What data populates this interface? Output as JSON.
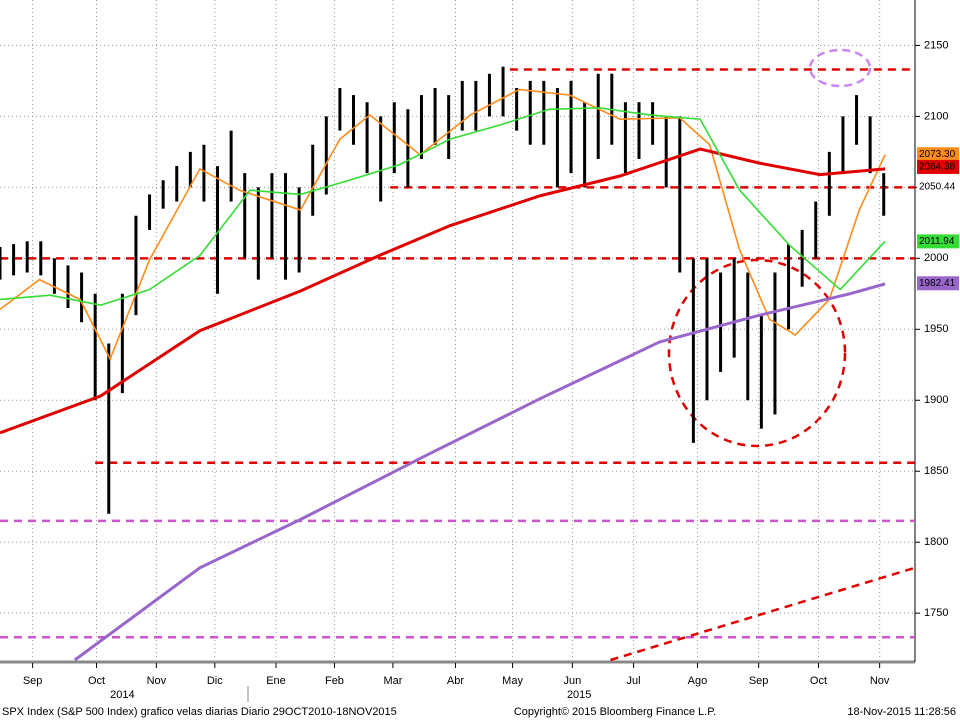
{
  "chart_data": {
    "type": "candlestick",
    "x": [
      0,
      1,
      2,
      3,
      4,
      5,
      6,
      7,
      8,
      9,
      10,
      11,
      12,
      13,
      14,
      15,
      16,
      17,
      18,
      19,
      20,
      21,
      22,
      23,
      24,
      25,
      26,
      27,
      28,
      29,
      30,
      31,
      32,
      33,
      34,
      35,
      36,
      37,
      38,
      39,
      40,
      41,
      42,
      43,
      44,
      45,
      46,
      47,
      48,
      49,
      50,
      51,
      52,
      53,
      54,
      55,
      56,
      57,
      58,
      59,
      60,
      61,
      62,
      63,
      64,
      65
    ],
    "high": [
      2008,
      2010,
      2012,
      2012,
      2000,
      1995,
      1990,
      1975,
      1940,
      1975,
      2030,
      2045,
      2055,
      2065,
      2075,
      2080,
      2065,
      2090,
      2060,
      2050,
      2060,
      2060,
      2050,
      2080,
      2100,
      2120,
      2115,
      2110,
      2100,
      2110,
      2105,
      2115,
      2120,
      2115,
      2125,
      2125,
      2130,
      2135,
      2120,
      2125,
      2125,
      2120,
      2125,
      2110,
      2130,
      2130,
      2110,
      2110,
      2110,
      2100,
      2100,
      2000,
      2000,
      1990,
      2000,
      1990,
      1960,
      1990,
      2010,
      2020,
      2040,
      2075,
      2100,
      2115,
      2100,
      2060
    ],
    "low": [
      1985,
      1988,
      1990,
      1988,
      1975,
      1965,
      1955,
      1900,
      1820,
      1905,
      1960,
      2020,
      2035,
      2040,
      2050,
      2040,
      1975,
      2040,
      2000,
      1985,
      2000,
      1985,
      1990,
      2030,
      2045,
      2090,
      2080,
      2060,
      2040,
      2060,
      2050,
      2070,
      2080,
      2070,
      2090,
      2090,
      2100,
      2100,
      2090,
      2080,
      2080,
      2050,
      2060,
      2050,
      2070,
      2080,
      2060,
      2070,
      2080,
      2050,
      1990,
      1870,
      1900,
      1920,
      1930,
      1900,
      1880,
      1890,
      1950,
      1980,
      2000,
      2030,
      2060,
      2080,
      2060,
      2030
    ],
    "color": "#000000",
    "last": {
      "value": 2050.44,
      "label": "2050.44"
    },
    "series": [
      {
        "color": "#ff8c1a",
        "x": [
          0,
          2.9,
          5.9,
          8.1,
          11,
          14.7,
          17.6,
          22.1,
          25,
          27.2,
          30.9,
          34.6,
          38.2,
          41.9,
          45.6,
          50,
          52.2,
          54.4,
          56.6,
          58.5,
          61,
          63.2,
          65.1
        ],
        "values": [
          1964,
          1985,
          1971,
          1929,
          1999,
          2063,
          2048,
          2034,
          2084,
          2101,
          2073,
          2101,
          2119,
          2115,
          2098,
          2099,
          2080,
          2006,
          1957,
          1946,
          1971,
          2034,
          2073
        ],
        "last": {
          "value": 2073.3,
          "label": "2073.30"
        }
      },
      {
        "color": "#e00000",
        "x": [
          0,
          7.4,
          14.7,
          22.1,
          27.9,
          33.1,
          39.7,
          45.6,
          51.5,
          55.9,
          60.3,
          65.1
        ],
        "values": [
          1877,
          1903,
          1949,
          1977,
          2002,
          2023,
          2044,
          2058,
          2077,
          2067,
          2059,
          2063
        ],
        "last": {
          "value": 2064.38,
          "label": "2064.38"
        }
      },
      {
        "color": "#33dd33",
        "x": [
          0,
          3.7,
          7.4,
          11,
          14.7,
          18.4,
          22.1,
          25.7,
          29.4,
          33.1,
          36.8,
          40.4,
          44.1,
          47.8,
          51.5,
          54.4,
          58.1,
          61.8,
          65.1
        ],
        "values": [
          1971,
          1974,
          1967,
          1978,
          2002,
          2048,
          2045,
          2055,
          2066,
          2084,
          2094,
          2105,
          2106,
          2101,
          2098,
          2048,
          2009,
          1978,
          2012
        ],
        "last": {
          "value": 2011.94,
          "label": "2011.94"
        }
      },
      {
        "color": "#9966cc",
        "x": [
          5.5,
          14.7,
          22.1,
          30.9,
          39.7,
          48.5,
          55.9,
          62.5,
          65.1
        ],
        "values": [
          1717,
          1782,
          1816,
          1859,
          1901,
          1941,
          1960,
          1975,
          1982
        ],
        "last": {
          "value": 1982.41,
          "label": "1982.41"
        }
      }
    ],
    "hlines": [
      {
        "value": 2133,
        "xmin": 37.5,
        "color": "#e00000"
      },
      {
        "value": 2050,
        "xmin": 28.7,
        "color": "#e00000"
      },
      {
        "value": 2000,
        "xmin": 0,
        "color": "#e00000"
      },
      {
        "value": 1856,
        "xmin": 7,
        "color": "#e00000"
      },
      {
        "value": 1815,
        "xmin": 0,
        "color": "#cc55cc"
      },
      {
        "value": 1733,
        "xmin": 0,
        "color": "#cc55cc"
      }
    ],
    "trendline": {
      "color": "#e00000",
      "x": [
        44.9,
        67.3
      ],
      "values": [
        1717,
        1782
      ]
    },
    "xlim": [
      0,
      67.3
    ],
    "ylim": [
      1717,
      2182
    ],
    "yticks": [
      1750,
      1800,
      1850,
      1900,
      1950,
      2000,
      2050,
      2100,
      2150
    ],
    "xticks": [
      {
        "value": 2.4,
        "label": "Sep"
      },
      {
        "value": 7.1,
        "label": "Oct"
      },
      {
        "value": 11.5,
        "label": "Nov"
      },
      {
        "value": 15.8,
        "label": "Dic"
      },
      {
        "value": 20.3,
        "label": "Ene"
      },
      {
        "value": 24.6,
        "label": "Feb"
      },
      {
        "value": 28.9,
        "label": "Mar"
      },
      {
        "value": 33.5,
        "label": "Abr"
      },
      {
        "value": 37.7,
        "label": "May"
      },
      {
        "value": 42.1,
        "label": "Jun"
      },
      {
        "value": 46.6,
        "label": "Jul"
      },
      {
        "value": 51.3,
        "label": "Ago"
      },
      {
        "value": 55.8,
        "label": "Sep"
      },
      {
        "value": 60.2,
        "label": "Oct"
      },
      {
        "value": 64.7,
        "label": "Nov"
      }
    ],
    "years": [
      {
        "value": 9.0,
        "label": "2014"
      },
      {
        "value": 42.6,
        "label": "2015"
      }
    ],
    "grid": true,
    "footer_left": "SPX Index (S&P 500 Index) grafico velas diarias  Diario 29OCT2010-18NOV2015",
    "footer_center": "Copyright© 2015 Bloomberg Finance L.P.",
    "footer_right": "18-Nov-2015 11:28:56"
  }
}
